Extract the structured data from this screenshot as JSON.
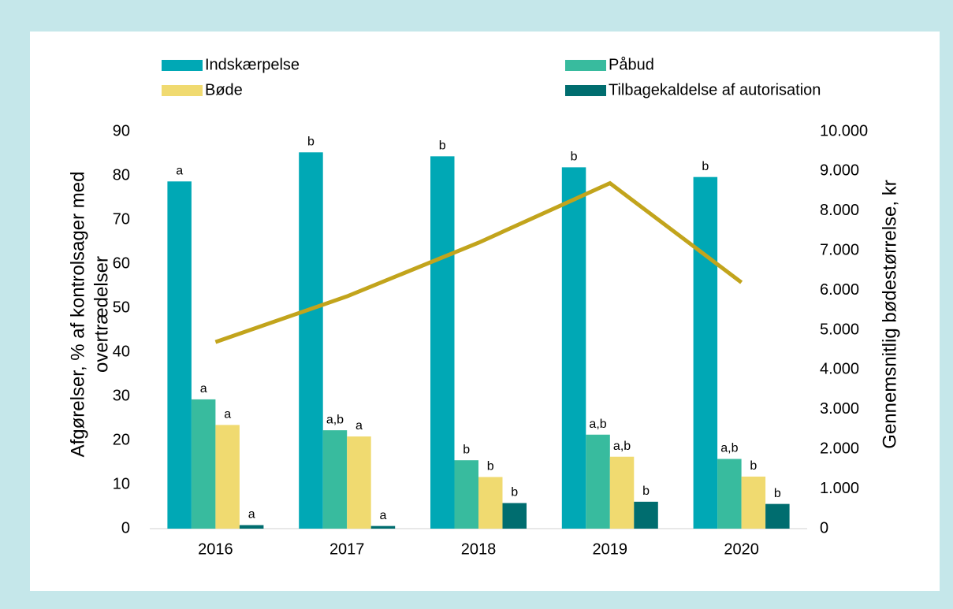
{
  "chart_data": {
    "type": "bar",
    "categories": [
      "2016",
      "2017",
      "2018",
      "2019",
      "2020"
    ],
    "series": [
      {
        "name": "Indskærpelse",
        "color": "#00a8b5",
        "values": [
          78.7,
          85.3,
          84.4,
          81.9,
          79.7
        ],
        "labels": [
          "a",
          "b",
          "b",
          "b",
          "b"
        ]
      },
      {
        "name": "Påbud",
        "color": "#38bb9e",
        "values": [
          29.3,
          22.3,
          15.5,
          21.3,
          15.8
        ],
        "labels": [
          "a",
          "a,b",
          "b",
          "a,b",
          "a,b"
        ]
      },
      {
        "name": "Bøde",
        "color": "#f0da70",
        "values": [
          23.5,
          20.9,
          11.7,
          16.3,
          11.8
        ],
        "labels": [
          "a",
          "a",
          "b",
          "a,b",
          "b"
        ]
      },
      {
        "name": "Tilbagekaldelse af autorisation",
        "color": "#006d6f",
        "values": [
          0.8,
          0.6,
          5.8,
          6.1,
          5.6
        ],
        "labels": [
          "a",
          "a",
          "b",
          "b",
          "b"
        ]
      },
      {
        "type": "line",
        "axis": "y2",
        "color": "#c2a41c",
        "values": [
          4700,
          5850,
          7200,
          8700,
          6200
        ]
      }
    ],
    "ylabel": [
      "Afgørelser, % af kontrolsager med",
      "overtrædelser"
    ],
    "y2label": "Gennemsnitlig bødestørrelse, kr",
    "ylim": [
      0,
      90
    ],
    "yticks": [
      0,
      10,
      20,
      30,
      40,
      50,
      60,
      70,
      80,
      90
    ],
    "y2lim": [
      0,
      10000
    ],
    "y2ticks": [
      0,
      {
        "value": 1000,
        "label": "1.000"
      },
      {
        "value": 2000,
        "label": "2.000"
      },
      {
        "value": 3000,
        "label": "3.000"
      },
      {
        "value": 4000,
        "label": "4.000"
      },
      {
        "value": 5000,
        "label": "5.000"
      },
      {
        "value": 6000,
        "label": "6.000"
      },
      {
        "value": 7000,
        "label": "7.000"
      },
      {
        "value": 8000,
        "label": "8.000"
      },
      {
        "value": 9000,
        "label": "9.000"
      },
      {
        "value": 10000,
        "label": "10.000"
      }
    ]
  }
}
